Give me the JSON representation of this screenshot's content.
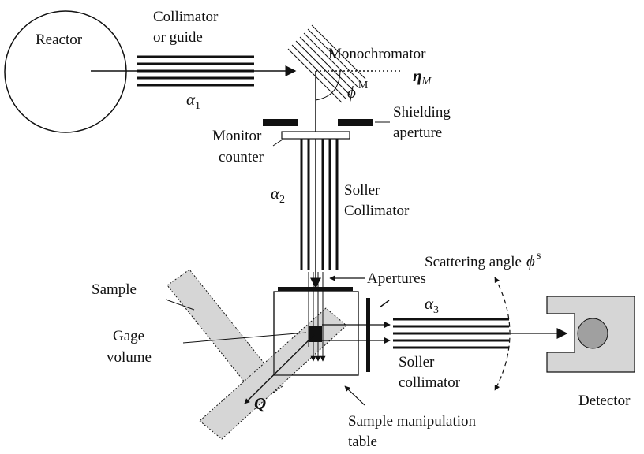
{
  "labels": {
    "reactor": "Reactor",
    "collimator_l1": "Collimator",
    "collimator_l2": "or guide",
    "alpha1_sym": "α",
    "alpha1_sub": "1",
    "monochromator": "Monochromator",
    "eta_sym": "η",
    "eta_sub": "M",
    "phi_m_sym": "ϕ",
    "phi_m_sup": "M",
    "shielding_l1": "Shielding",
    "shielding_l2": "aperture",
    "monitor_l1": "Monitor",
    "monitor_l2": "counter",
    "alpha2_sym": "α",
    "alpha2_sub": "2",
    "soller1_l1": "Soller",
    "soller1_l2": "Collimator",
    "scattering_angle": "Scattering angle",
    "phi_s_sym": "ϕ",
    "phi_s_sup": "s",
    "apertures": "Apertures",
    "alpha3_sym": "α",
    "alpha3_sub": "3",
    "sample": "Sample",
    "gage_l1": "Gage",
    "gage_l2": "volume",
    "soller2_l1": "Soller",
    "soller2_l2": "collimator",
    "q_sym": "Q",
    "table_l1": "Sample manipulation",
    "table_l2": "table",
    "detector": "Detector"
  }
}
